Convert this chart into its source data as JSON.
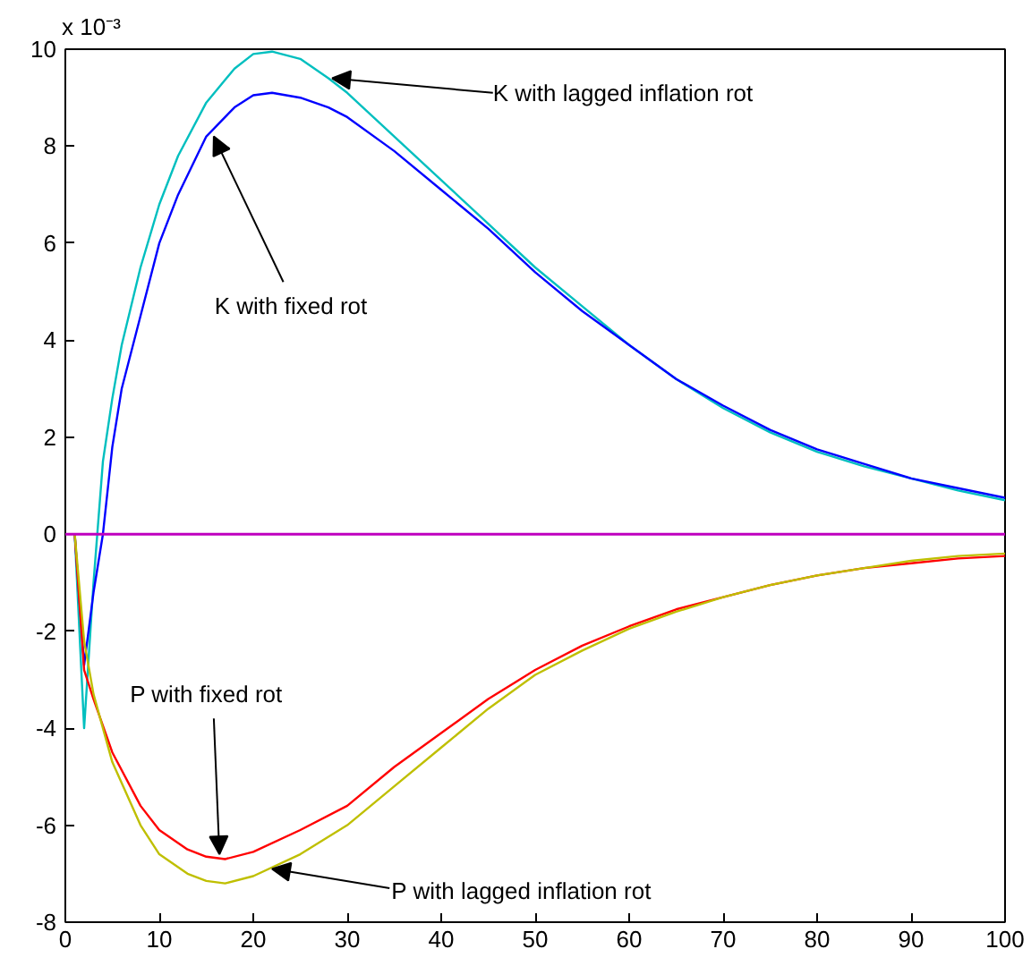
{
  "chart_data": {
    "type": "line",
    "xlim": [
      0,
      100
    ],
    "xticks": [
      0,
      10,
      20,
      30,
      40,
      50,
      60,
      70,
      80,
      90,
      100
    ],
    "ylim": [
      -8,
      10
    ],
    "yticks": [
      -8,
      -6,
      -4,
      -2,
      0,
      2,
      4,
      6,
      8,
      10
    ],
    "grid": false,
    "marker": "none",
    "line_style": "solid",
    "series": [
      {
        "color": "#00bfbf",
        "x": [
          1,
          2,
          3,
          4,
          5,
          6,
          8,
          10,
          12,
          15,
          18,
          20,
          22,
          25,
          28,
          30,
          35,
          40,
          45,
          50,
          55,
          60,
          65,
          70,
          75,
          80,
          85,
          90,
          95,
          100
        ],
        "values": [
          0,
          -4,
          -1,
          1.5,
          2.8,
          3.9,
          5.5,
          6.8,
          7.8,
          8.9,
          9.6,
          9.9,
          9.95,
          9.8,
          9.4,
          9.1,
          8.2,
          7.3,
          6.4,
          5.5,
          4.7,
          3.9,
          3.2,
          2.6,
          2.1,
          1.7,
          1.4,
          1.15,
          0.9,
          0.7
        ]
      },
      {
        "color": "#0000ff",
        "x": [
          1,
          2,
          3,
          4,
          5,
          6,
          8,
          10,
          12,
          15,
          18,
          20,
          22,
          25,
          28,
          30,
          35,
          40,
          45,
          50,
          55,
          60,
          65,
          70,
          75,
          80,
          85,
          90,
          95,
          100
        ],
        "values": [
          0,
          -2.7,
          -1.2,
          0,
          1.8,
          3.0,
          4.5,
          6.0,
          7.0,
          8.2,
          8.8,
          9.05,
          9.1,
          9.0,
          8.8,
          8.6,
          7.9,
          7.1,
          6.3,
          5.4,
          4.6,
          3.9,
          3.2,
          2.65,
          2.15,
          1.75,
          1.45,
          1.15,
          0.95,
          0.75
        ]
      },
      {
        "color": "#ff0000",
        "x": [
          1,
          2,
          3,
          5,
          8,
          10,
          13,
          15,
          17,
          20,
          25,
          30,
          35,
          40,
          45,
          50,
          55,
          60,
          65,
          70,
          75,
          80,
          85,
          90,
          95,
          100
        ],
        "values": [
          0,
          -2.8,
          -3.4,
          -4.5,
          -5.6,
          -6.1,
          -6.5,
          -6.65,
          -6.7,
          -6.55,
          -6.1,
          -5.6,
          -4.8,
          -4.1,
          -3.4,
          -2.8,
          -2.3,
          -1.9,
          -1.55,
          -1.3,
          -1.05,
          -0.85,
          -0.7,
          -0.6,
          -0.5,
          -0.45
        ]
      },
      {
        "color": "#bfbf00",
        "x": [
          1,
          2,
          3,
          5,
          8,
          10,
          13,
          15,
          17,
          20,
          25,
          30,
          35,
          40,
          45,
          50,
          55,
          60,
          65,
          70,
          75,
          80,
          85,
          90,
          95,
          100
        ],
        "values": [
          0,
          -2.2,
          -3.3,
          -4.7,
          -6.0,
          -6.6,
          -7.0,
          -7.15,
          -7.2,
          -7.05,
          -6.6,
          -6.0,
          -5.2,
          -4.4,
          -3.6,
          -2.9,
          -2.4,
          -1.95,
          -1.6,
          -1.3,
          -1.05,
          -0.85,
          -0.7,
          -0.55,
          -0.45,
          -0.4
        ]
      }
    ],
    "ref_lines": [
      {
        "axis": "y",
        "value": 0,
        "color": "#bf00bf",
        "line_style": "solid",
        "label": null
      }
    ],
    "annotations": [
      "x 10⁻³",
      {
        "text": "K with lagged inflation rot",
        "x": 28.4,
        "y": 9.4
      },
      {
        "text": "K with fixed rot",
        "x": 15.8,
        "y": 8.2
      },
      {
        "text": "P with fixed rot",
        "x": 16.4,
        "y": -6.6
      },
      {
        "text": "P with lagged inflation rot",
        "x": 22,
        "y": -6.9
      }
    ]
  }
}
